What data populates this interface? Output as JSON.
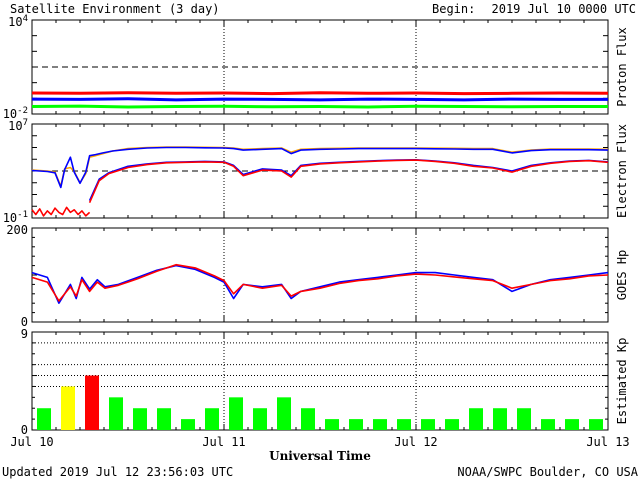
{
  "header": {
    "title": "Satellite Environment (3 day)",
    "begin_label": "Begin:",
    "begin_value": "2019 Jul 10 0000 UTC"
  },
  "footer": {
    "updated": "Updated 2019 Jul 12 23:56:03 UTC",
    "credit": "NOAA/SWPC Boulder, CO USA",
    "xlabel": "Universal Time"
  },
  "colors": {
    "red": "#ff0000",
    "blue": "#0000ff",
    "green": "#00ff00",
    "orange": "#ffa500",
    "yellow": "#ffff00",
    "dark_red": "#dd0000"
  },
  "chart_data": {
    "type": "line",
    "x_ticks": [
      "Jul 10",
      "Jul 11",
      "Jul 12",
      "Jul 13"
    ],
    "x_range_days": [
      0,
      3
    ],
    "panels": [
      {
        "id": "proton",
        "ylabel": "Proton Flux",
        "scale": "log",
        "ylim": [
          0.01,
          10000
        ],
        "tick_labels": [
          {
            "base": "10",
            "exp": "4",
            "value": 10000
          },
          {
            "base": "10",
            "exp": "-2",
            "value": 0.01
          }
        ],
        "threshold": 10,
        "series": [
          {
            "color": "red",
            "x": [
              0,
              0.25,
              0.5,
              0.75,
              1,
              1.25,
              1.5,
              1.75,
              2,
              2.25,
              2.5,
              2.75,
              3
            ],
            "y": [
              0.22,
              0.21,
              0.23,
              0.21,
              0.22,
              0.2,
              0.23,
              0.21,
              0.22,
              0.2,
              0.21,
              0.22,
              0.21
            ]
          },
          {
            "color": "blue",
            "x": [
              0,
              0.25,
              0.5,
              0.75,
              1,
              1.25,
              1.5,
              1.75,
              2,
              2.25,
              2.5,
              2.75,
              3
            ],
            "y": [
              0.09,
              0.085,
              0.095,
              0.08,
              0.09,
              0.085,
              0.08,
              0.09,
              0.085,
              0.08,
              0.09,
              0.085,
              0.085
            ]
          },
          {
            "color": "green",
            "x": [
              0,
              0.25,
              0.5,
              0.75,
              1,
              1.25,
              1.5,
              1.75,
              2,
              2.25,
              2.5,
              2.75,
              3
            ],
            "y": [
              0.03,
              0.032,
              0.028,
              0.03,
              0.031,
              0.029,
              0.03,
              0.028,
              0.031,
              0.03,
              0.029,
              0.03,
              0.03
            ]
          }
        ]
      },
      {
        "id": "electron",
        "ylabel": "Electron Flux",
        "scale": "log",
        "ylim": [
          0.1,
          10000000
        ],
        "tick_labels": [
          {
            "base": "10",
            "exp": "7",
            "value": 10000000
          },
          {
            "base": "10",
            "exp": "-1",
            "value": 0.1
          }
        ],
        "threshold": 1000,
        "series": [
          {
            "color": "orange",
            "x": [
              0,
              0.08,
              0.12,
              0.15,
              0.17,
              0.2,
              0.22,
              0.25,
              0.28,
              0.3,
              0.33,
              0.37,
              0.42,
              0.5,
              0.6,
              0.7,
              0.8,
              0.9,
              1,
              1.05,
              1.1,
              1.2,
              1.3,
              1.35,
              1.4,
              1.5,
              1.6,
              1.7,
              1.8,
              1.9,
              2,
              2.1,
              2.2,
              2.3,
              2.4,
              2.5,
              2.6,
              2.7,
              2.8,
              2.9,
              3
            ],
            "y": [
              1200,
              1000,
              800,
              50,
              1500,
              2000,
              900,
              100,
              600,
              15000,
              20000,
              30000,
              50000,
              80000,
              100000,
              110000,
              110000,
              105000,
              100000,
              90000,
              70000,
              80000,
              90000,
              40000,
              70000,
              80000,
              85000,
              90000,
              90000,
              90000,
              90000,
              88000,
              85000,
              80000,
              80000,
              40000,
              60000,
              75000,
              75000,
              75000,
              70000
            ]
          },
          {
            "color": "blue",
            "x": [
              0,
              0.08,
              0.12,
              0.15,
              0.17,
              0.2,
              0.22,
              0.25,
              0.28,
              0.3,
              0.33,
              0.37,
              0.42,
              0.5,
              0.6,
              0.7,
              0.8,
              0.9,
              1,
              1.05,
              1.1,
              1.2,
              1.3,
              1.35,
              1.4,
              1.5,
              1.6,
              1.7,
              1.8,
              1.9,
              2,
              2.1,
              2.2,
              2.3,
              2.4,
              2.5,
              2.6,
              2.7,
              2.8,
              2.9,
              3
            ],
            "y": [
              1100,
              900,
              700,
              40,
              1300,
              15000,
              800,
              90,
              800,
              20000,
              25000,
              35000,
              50000,
              70000,
              90000,
              100000,
              100000,
              95000,
              90000,
              80000,
              60000,
              70000,
              80000,
              30000,
              60000,
              70000,
              75000,
              80000,
              80000,
              80000,
              80000,
              78000,
              75000,
              70000,
              70000,
              35000,
              55000,
              65000,
              65000,
              65000,
              60000
            ]
          },
          {
            "color": "blue",
            "x": [
              0.3,
              0.35,
              0.4,
              0.5,
              0.6,
              0.7,
              0.8,
              0.9,
              1,
              1.05,
              1.1,
              1.2,
              1.3,
              1.35,
              1.4,
              1.5,
              1.6,
              1.7,
              1.8,
              1.9,
              2,
              2.1,
              2.2,
              2.3,
              2.4,
              2.5,
              2.6,
              2.7,
              2.8,
              2.9,
              3
            ],
            "y": [
              3,
              200,
              700,
              2500,
              4000,
              5500,
              6000,
              6500,
              6000,
              3000,
              500,
              1500,
              1200,
              400,
              3000,
              4500,
              5500,
              6500,
              7500,
              8500,
              9000,
              7000,
              5000,
              3000,
              2000,
              1000,
              3000,
              5000,
              7000,
              8000,
              6000
            ]
          },
          {
            "color": "red",
            "x": [
              0.3,
              0.35,
              0.4,
              0.5,
              0.6,
              0.7,
              0.8,
              0.9,
              1,
              1.05,
              1.1,
              1.2,
              1.3,
              1.35,
              1.4,
              1.5,
              1.6,
              1.7,
              1.8,
              1.9,
              2,
              2.1,
              2.2,
              2.3,
              2.4,
              2.5,
              2.6,
              2.7,
              2.8,
              2.9,
              3
            ],
            "y": [
              2,
              150,
              600,
              2000,
              3500,
              5000,
              5500,
              6000,
              5500,
              2500,
              400,
              1200,
              1000,
              300,
              2500,
              4000,
              5000,
              6000,
              7000,
              8000,
              8500,
              6500,
              4500,
              2500,
              1800,
              800,
              2500,
              4500,
              6500,
              7500,
              5500
            ]
          },
          {
            "color": "red",
            "x": [
              0,
              0.02,
              0.04,
              0.06,
              0.08,
              0.1,
              0.12,
              0.14,
              0.16,
              0.18,
              0.2,
              0.22,
              0.24,
              0.26,
              0.28,
              0.3
            ],
            "y": [
              0.5,
              0.2,
              0.6,
              0.15,
              0.4,
              0.2,
              0.7,
              0.3,
              0.2,
              0.8,
              0.3,
              0.5,
              0.2,
              0.4,
              0.15,
              0.3
            ]
          }
        ]
      },
      {
        "id": "goes_hp",
        "ylabel": "GOES Hp",
        "scale": "linear",
        "ylim": [
          0,
          200
        ],
        "tick_labels": [
          {
            "base": "200",
            "value": 200
          },
          {
            "base": "0",
            "value": 0
          }
        ],
        "series": [
          {
            "color": "blue",
            "x": [
              0,
              0.08,
              0.14,
              0.2,
              0.23,
              0.26,
              0.3,
              0.34,
              0.38,
              0.45,
              0.55,
              0.65,
              0.75,
              0.85,
              0.95,
              1,
              1.05,
              1.1,
              1.2,
              1.3,
              1.35,
              1.4,
              1.5,
              1.6,
              1.7,
              1.8,
              1.9,
              2,
              2.1,
              2.2,
              2.3,
              2.4,
              2.5,
              2.6,
              2.7,
              2.8,
              2.9,
              3
            ],
            "y": [
              105,
              95,
              40,
              80,
              50,
              95,
              70,
              90,
              75,
              80,
              95,
              110,
              120,
              112,
              95,
              85,
              50,
              80,
              75,
              80,
              50,
              65,
              75,
              85,
              90,
              95,
              100,
              105,
              105,
              100,
              95,
              90,
              65,
              80,
              90,
              95,
              100,
              105
            ]
          },
          {
            "color": "red",
            "x": [
              0,
              0.08,
              0.14,
              0.2,
              0.23,
              0.26,
              0.3,
              0.34,
              0.38,
              0.45,
              0.55,
              0.65,
              0.75,
              0.85,
              0.95,
              1,
              1.05,
              1.1,
              1.2,
              1.3,
              1.35,
              1.4,
              1.5,
              1.6,
              1.7,
              1.8,
              1.9,
              2,
              2.1,
              2.2,
              2.3,
              2.4,
              2.5,
              2.6,
              2.7,
              2.8,
              2.9,
              3
            ],
            "y": [
              95,
              85,
              45,
              75,
              55,
              90,
              65,
              85,
              72,
              78,
              92,
              108,
              122,
              115,
              98,
              88,
              60,
              80,
              72,
              78,
              55,
              65,
              72,
              82,
              88,
              92,
              98,
              102,
              100,
              96,
              92,
              88,
              72,
              80,
              88,
              92,
              98,
              100
            ]
          }
        ]
      },
      {
        "id": "kp",
        "type": "bar",
        "ylabel": "Estimated Kp",
        "scale": "linear",
        "ylim": [
          0,
          9
        ],
        "tick_labels": [
          {
            "base": "9",
            "value": 9
          },
          {
            "base": "0",
            "value": 0
          }
        ],
        "gridlines": [
          4,
          5,
          6,
          8
        ],
        "bin_hours": 3,
        "values": [
          2,
          4,
          5,
          3,
          2,
          2,
          1,
          2,
          3,
          2,
          3,
          2,
          1,
          1,
          1,
          1,
          1,
          1,
          2,
          2,
          2,
          1,
          1,
          1
        ],
        "bar_colors": [
          "green",
          "yellow",
          "red",
          "green",
          "green",
          "green",
          "green",
          "green",
          "green",
          "green",
          "green",
          "green",
          "green",
          "green",
          "green",
          "green",
          "green",
          "green",
          "green",
          "green",
          "green",
          "green",
          "green",
          "green"
        ]
      }
    ]
  }
}
